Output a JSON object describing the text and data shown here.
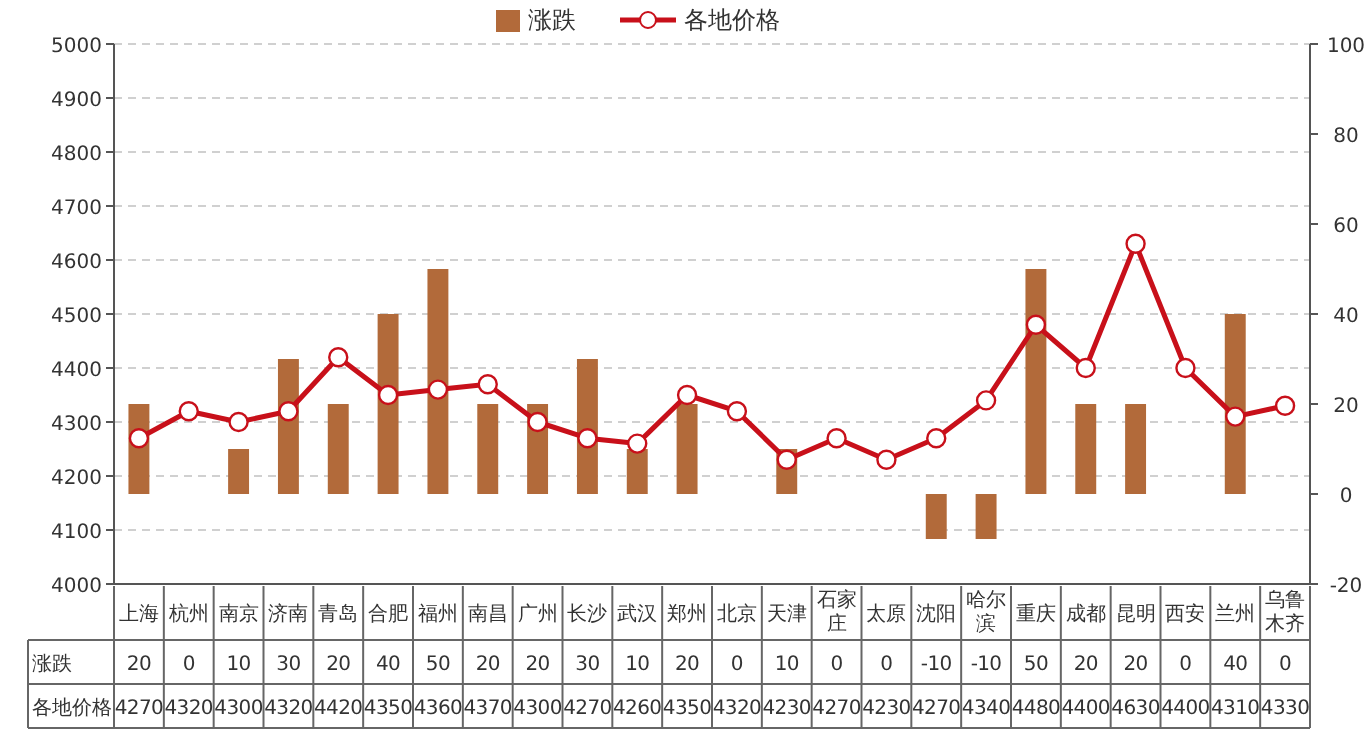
{
  "chart_data": {
    "type": "bar",
    "categories": [
      "上海",
      "杭州",
      "南京",
      "济南",
      "青岛",
      "合肥",
      "福州",
      "南昌",
      "广州",
      "长沙",
      "武汉",
      "郑州",
      "北京",
      "天津",
      "石家庄",
      "太原",
      "沈阳",
      "哈尔滨",
      "重庆",
      "成都",
      "昆明",
      "西安",
      "兰州",
      "乌鲁木齐"
    ],
    "series": [
      {
        "name": "涨跌",
        "axis": "y2",
        "color": "#b26a3a",
        "values": [
          20,
          0,
          10,
          30,
          20,
          40,
          50,
          20,
          20,
          30,
          10,
          20,
          0,
          10,
          0,
          0,
          -10,
          -10,
          50,
          20,
          20,
          0,
          40,
          0
        ]
      },
      {
        "name": "各地价格",
        "type": "line",
        "color": "#c8101a",
        "marker": "circle",
        "values": [
          4270,
          4320,
          4300,
          4320,
          4420,
          4350,
          4360,
          4370,
          4300,
          4270,
          4260,
          4350,
          4320,
          4230,
          4270,
          4230,
          4270,
          4340,
          4480,
          4400,
          4630,
          4400,
          4310,
          4330
        ]
      }
    ],
    "ylim": [
      4000,
      5000
    ],
    "yticks": [
      4000,
      4100,
      4200,
      4300,
      4400,
      4500,
      4600,
      4700,
      4800,
      4900,
      5000
    ],
    "y2lim": [
      -20,
      100
    ],
    "y2ticks": [
      -20,
      0,
      20,
      40,
      60,
      80,
      100
    ],
    "grid": "y",
    "legend": "top",
    "data_labels": true
  }
}
